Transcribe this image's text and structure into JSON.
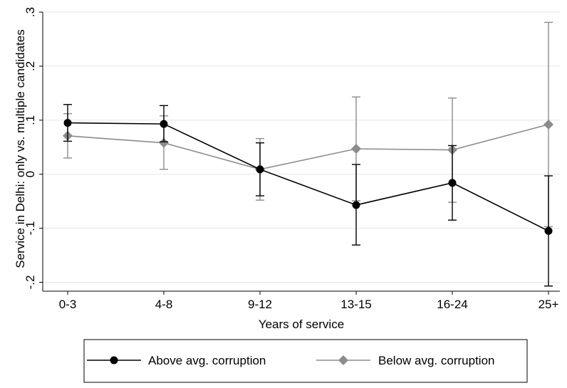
{
  "chart_data": {
    "type": "line",
    "title": "",
    "xlabel": "Years of service",
    "ylabel": "Service in Delhi: only vs. multiple candidates",
    "categories": [
      "0-3",
      "4-8",
      "9-12",
      "13-15",
      "16-24",
      "25+"
    ],
    "ylim": [
      -0.2,
      0.3
    ],
    "yticks": [
      -0.2,
      -0.1,
      0,
      0.1,
      0.2,
      0.3
    ],
    "ytick_labels": [
      "-.2",
      "-.1",
      "0",
      ".1",
      ".2",
      ".3"
    ],
    "grid": true,
    "legend_position": "bottom",
    "series": [
      {
        "name": "Above avg. corruption",
        "color": "#000000",
        "marker": "circle",
        "values": [
          0.095,
          0.093,
          0.009,
          -0.057,
          -0.016,
          -0.105
        ],
        "ci_low": [
          0.061,
          0.06,
          -0.04,
          -0.131,
          -0.085,
          -0.207
        ],
        "ci_high": [
          0.129,
          0.127,
          0.058,
          0.018,
          0.053,
          -0.003
        ]
      },
      {
        "name": "Below avg. corruption",
        "color": "#8c8c8c",
        "marker": "diamond",
        "values": [
          0.071,
          0.058,
          0.009,
          0.047,
          0.045,
          0.092
        ],
        "ci_low": [
          0.03,
          0.009,
          -0.048,
          -0.049,
          -0.052,
          -0.097
        ],
        "ci_high": [
          0.112,
          0.108,
          0.066,
          0.143,
          0.141,
          0.281
        ]
      }
    ]
  }
}
